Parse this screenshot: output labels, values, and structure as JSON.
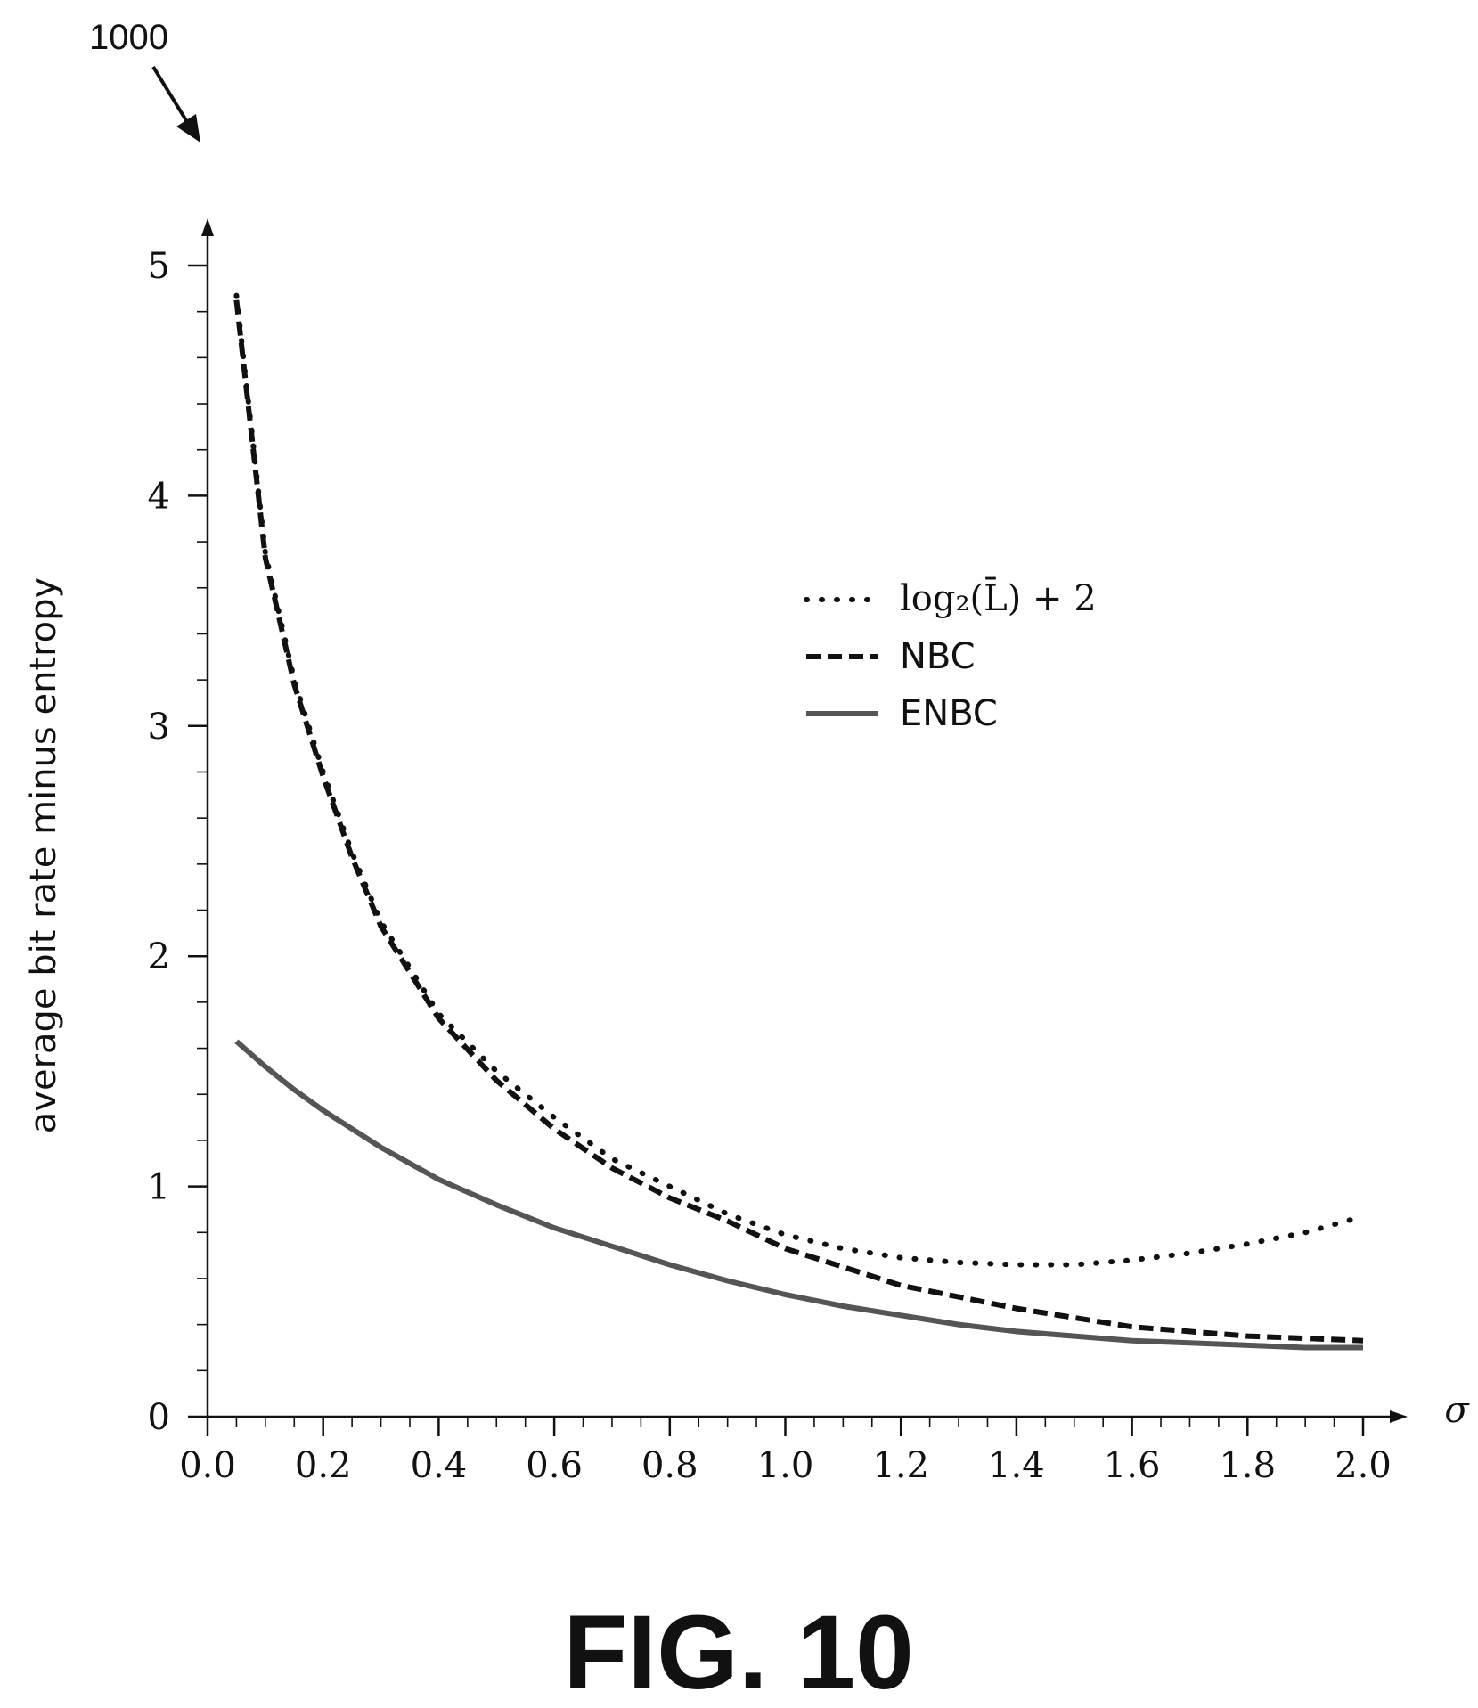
{
  "figure": {
    "reference_number": "1000",
    "caption": "FIG. 10"
  },
  "chart_data": {
    "type": "line",
    "title": "",
    "xlabel": "σ",
    "ylabel": "average bit rate minus entropy",
    "xlim": [
      0.0,
      2.0
    ],
    "ylim": [
      0,
      5
    ],
    "x_ticks": [
      "0.0",
      "0.2",
      "0.4",
      "0.6",
      "0.8",
      "1.0",
      "1.2",
      "1.4",
      "1.6",
      "1.8",
      "2.0"
    ],
    "y_ticks": [
      "0",
      "1",
      "2",
      "3",
      "4",
      "5"
    ],
    "grid": false,
    "legend_position": "upper-right",
    "x": [
      0.05,
      0.1,
      0.15,
      0.2,
      0.25,
      0.3,
      0.35,
      0.4,
      0.5,
      0.6,
      0.7,
      0.8,
      0.9,
      1.0,
      1.1,
      1.2,
      1.3,
      1.4,
      1.5,
      1.6,
      1.7,
      1.8,
      1.9,
      2.0
    ],
    "series": [
      {
        "name": "log₂(L̄) + 2",
        "style": "dotted",
        "color": "#111111",
        "values": [
          4.87,
          3.75,
          3.2,
          2.8,
          2.45,
          2.15,
          1.95,
          1.75,
          1.5,
          1.3,
          1.12,
          1.0,
          0.88,
          0.79,
          0.73,
          0.69,
          0.67,
          0.66,
          0.66,
          0.68,
          0.71,
          0.75,
          0.8,
          0.87
        ]
      },
      {
        "name": "NBC",
        "style": "dashed",
        "color": "#111111",
        "values": [
          4.85,
          3.73,
          3.18,
          2.78,
          2.43,
          2.13,
          1.93,
          1.73,
          1.46,
          1.25,
          1.08,
          0.95,
          0.85,
          0.73,
          0.65,
          0.57,
          0.52,
          0.47,
          0.43,
          0.39,
          0.37,
          0.35,
          0.34,
          0.33
        ]
      },
      {
        "name": "ENBC",
        "style": "solid",
        "color": "#555555",
        "values": [
          1.63,
          1.52,
          1.42,
          1.33,
          1.25,
          1.17,
          1.1,
          1.03,
          0.92,
          0.82,
          0.74,
          0.66,
          0.59,
          0.53,
          0.48,
          0.44,
          0.4,
          0.37,
          0.35,
          0.33,
          0.32,
          0.31,
          0.3,
          0.3
        ]
      }
    ]
  }
}
